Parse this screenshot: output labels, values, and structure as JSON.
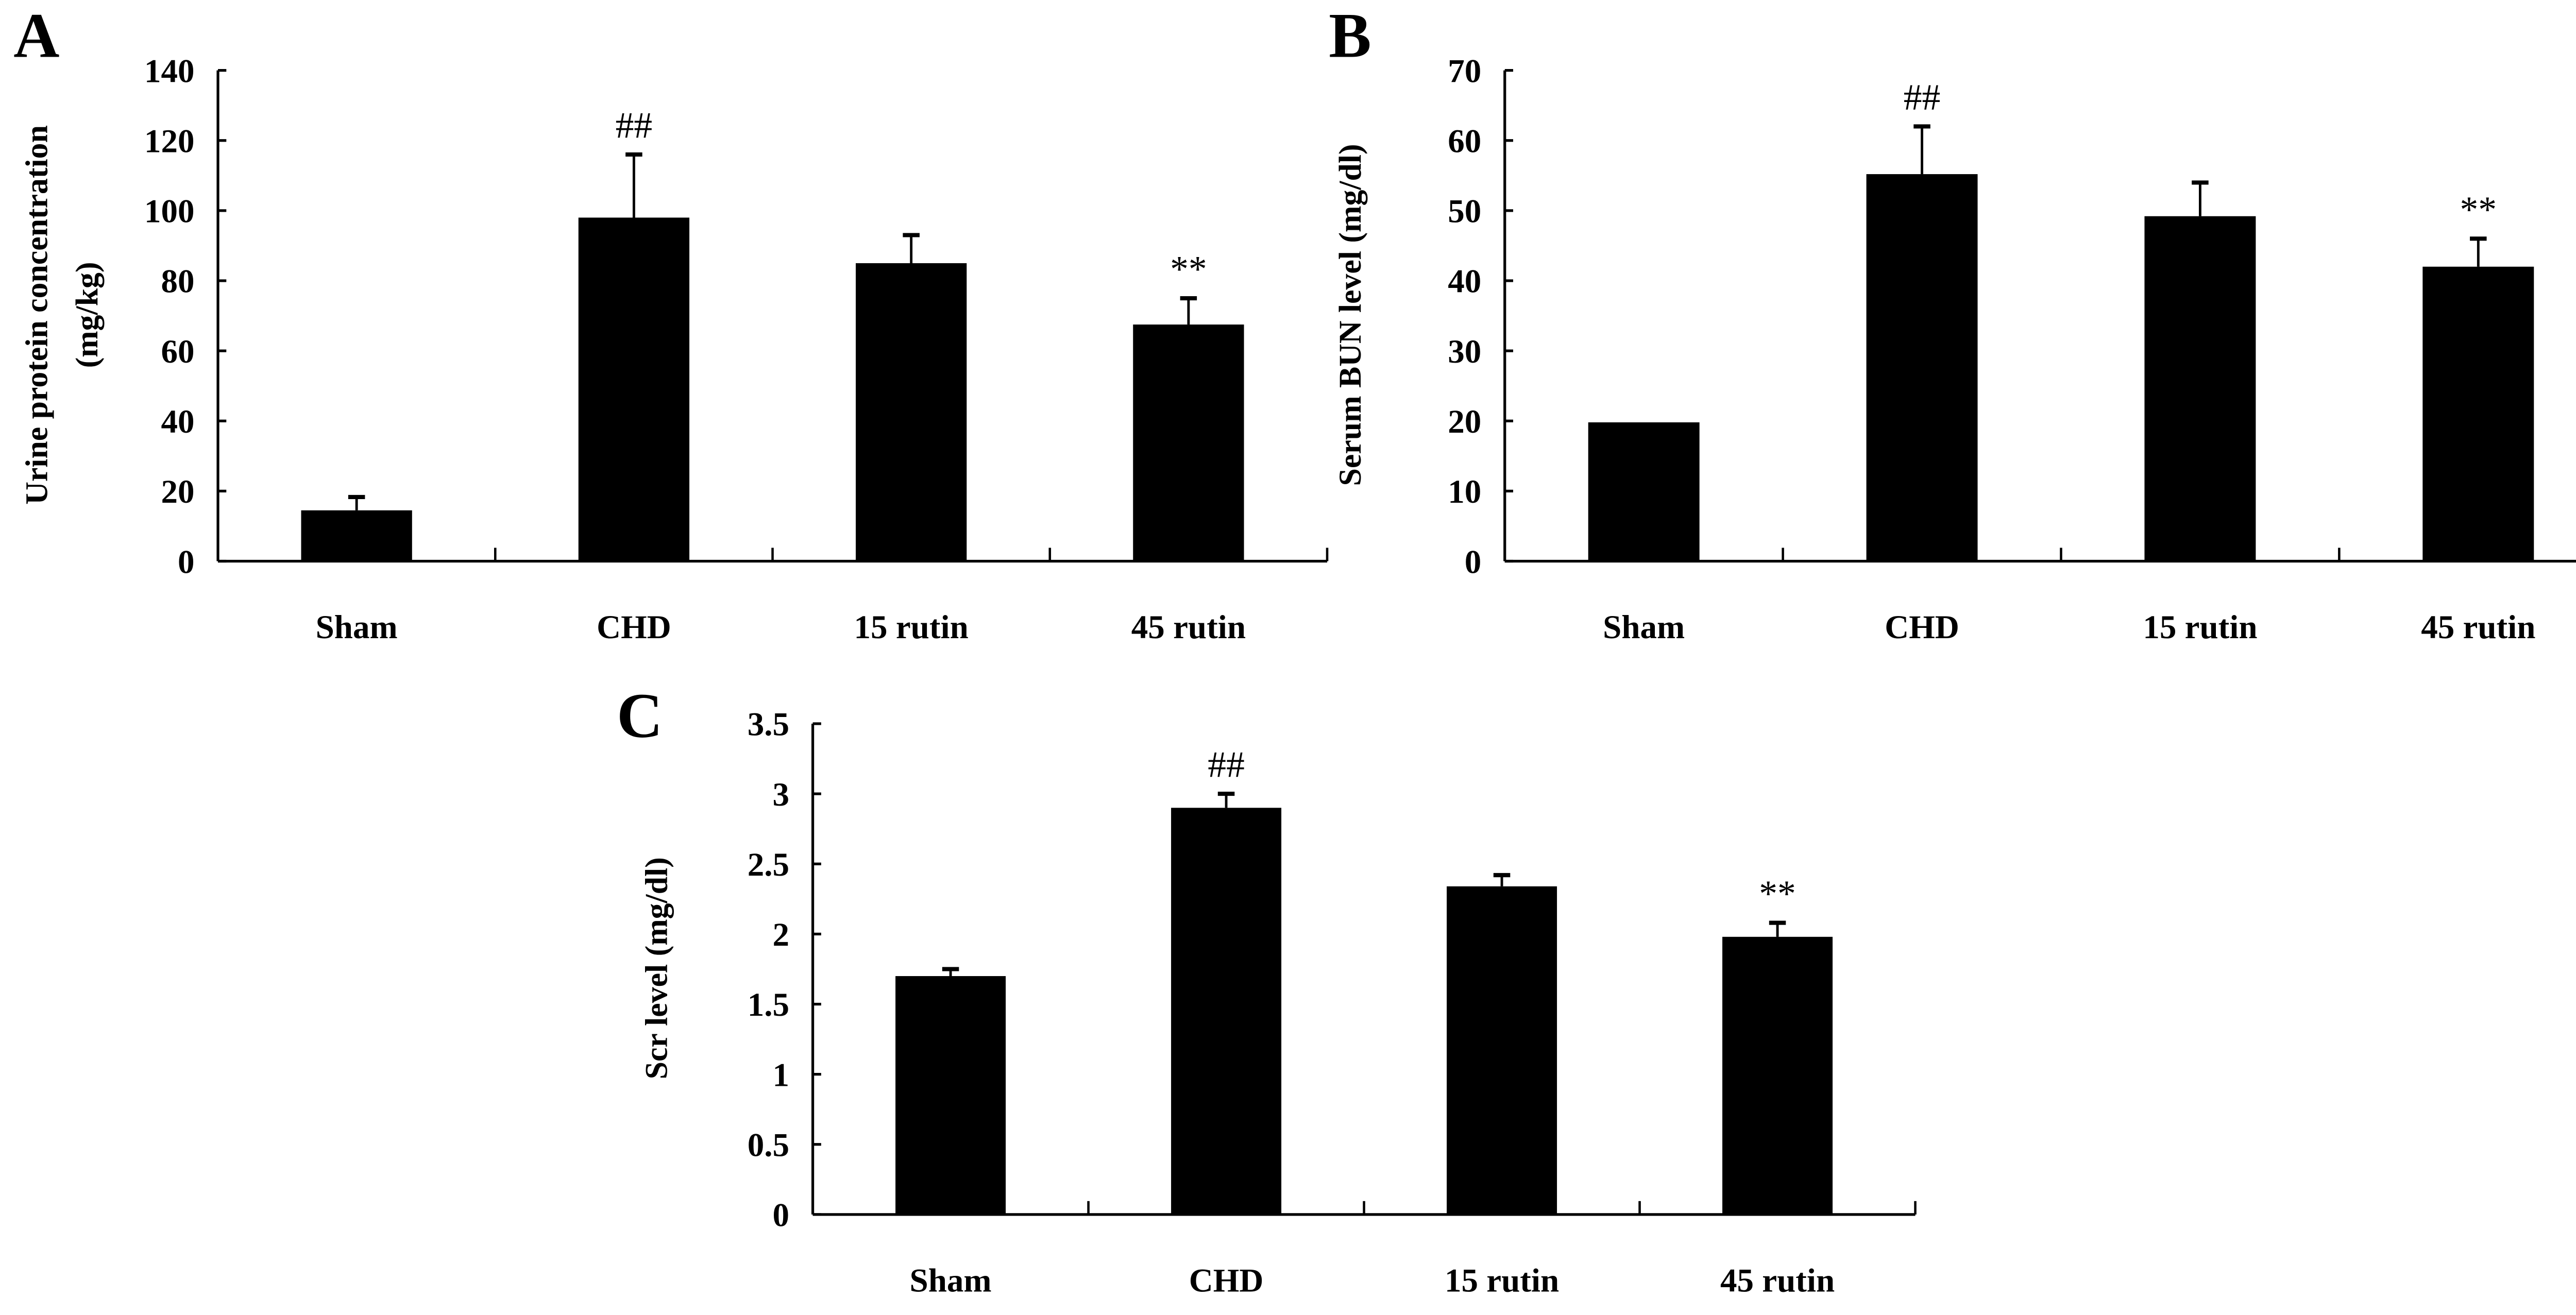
{
  "chart_data": [
    {
      "type": "bar",
      "panel_label": "A",
      "ylabel": [
        "Urine protein concentration",
        "(mg/kg)"
      ],
      "xlabel": "",
      "categories": [
        "Sham",
        "CHD",
        "15 rutin",
        "45 rutin"
      ],
      "values": [
        14.5,
        98,
        85,
        67.5
      ],
      "error_upper": [
        18.3,
        116,
        93,
        75
      ],
      "annotations": [
        "",
        "##",
        "",
        "**"
      ],
      "ylim": [
        0,
        140
      ],
      "yticks": [
        0,
        20,
        40,
        60,
        80,
        100,
        120,
        140
      ],
      "ytick_labels": [
        "0",
        "20",
        "40",
        "60",
        "80",
        "100",
        "120",
        "140"
      ],
      "bar_color": "#000000",
      "grid": false
    },
    {
      "type": "bar",
      "panel_label": "B",
      "ylabel": [
        "Serum BUN level (mg/dl)"
      ],
      "xlabel": "",
      "categories": [
        "Sham",
        "CHD",
        "15 rutin",
        "45 rutin"
      ],
      "values": [
        19.8,
        55.2,
        49.2,
        42
      ],
      "error_upper": [
        19.8,
        62,
        54,
        46
      ],
      "annotations": [
        "",
        "##",
        "",
        "**"
      ],
      "ylim": [
        0,
        70
      ],
      "yticks": [
        0,
        10,
        20,
        30,
        40,
        50,
        60,
        70
      ],
      "ytick_labels": [
        "0",
        "10",
        "20",
        "30",
        "40",
        "50",
        "60",
        "70"
      ],
      "bar_color": "#000000",
      "grid": false
    },
    {
      "type": "bar",
      "panel_label": "C",
      "ylabel": [
        "Scr level (mg/dl)"
      ],
      "xlabel": "",
      "categories": [
        "Sham",
        "CHD",
        "15 rutin",
        "45 rutin"
      ],
      "values": [
        1.7,
        2.9,
        2.34,
        1.98
      ],
      "error_upper": [
        1.75,
        3.0,
        2.42,
        2.08
      ],
      "annotations": [
        "",
        "##",
        "",
        "**"
      ],
      "ylim": [
        0,
        3.5
      ],
      "yticks": [
        0,
        0.5,
        1,
        1.5,
        2,
        2.5,
        3,
        3.5
      ],
      "ytick_labels": [
        "0",
        "0.5",
        "1",
        "1.5",
        "2",
        "2.5",
        "3",
        "3.5"
      ],
      "bar_color": "#000000",
      "grid": false
    }
  ]
}
